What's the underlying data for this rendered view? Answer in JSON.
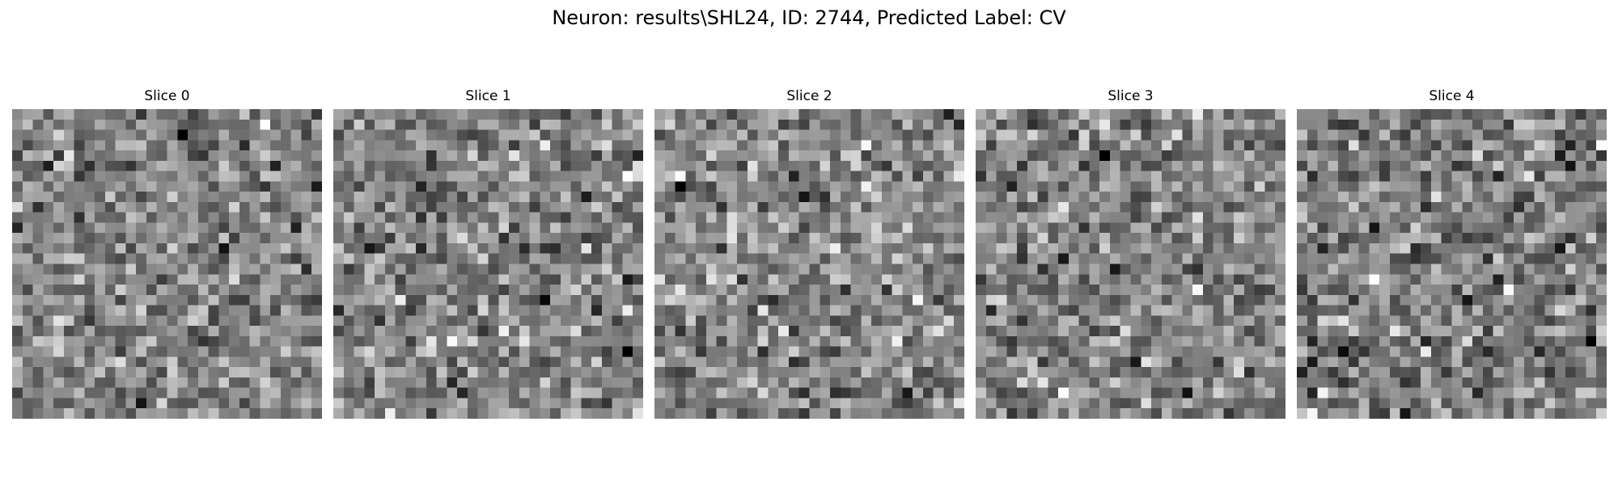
{
  "figure": {
    "title": "Neuron: results\\SHL24, ID: 2744, Predicted Label: CV"
  },
  "image": {
    "colormap": "gray",
    "grid_rows": 30,
    "grid_cols": 30
  },
  "slices": [
    {
      "label": "Slice 0",
      "seed": 1101
    },
    {
      "label": "Slice 1",
      "seed": 2203
    },
    {
      "label": "Slice 2",
      "seed": 3307
    },
    {
      "label": "Slice 3",
      "seed": 4409
    },
    {
      "label": "Slice 4",
      "seed": 5519
    }
  ]
}
